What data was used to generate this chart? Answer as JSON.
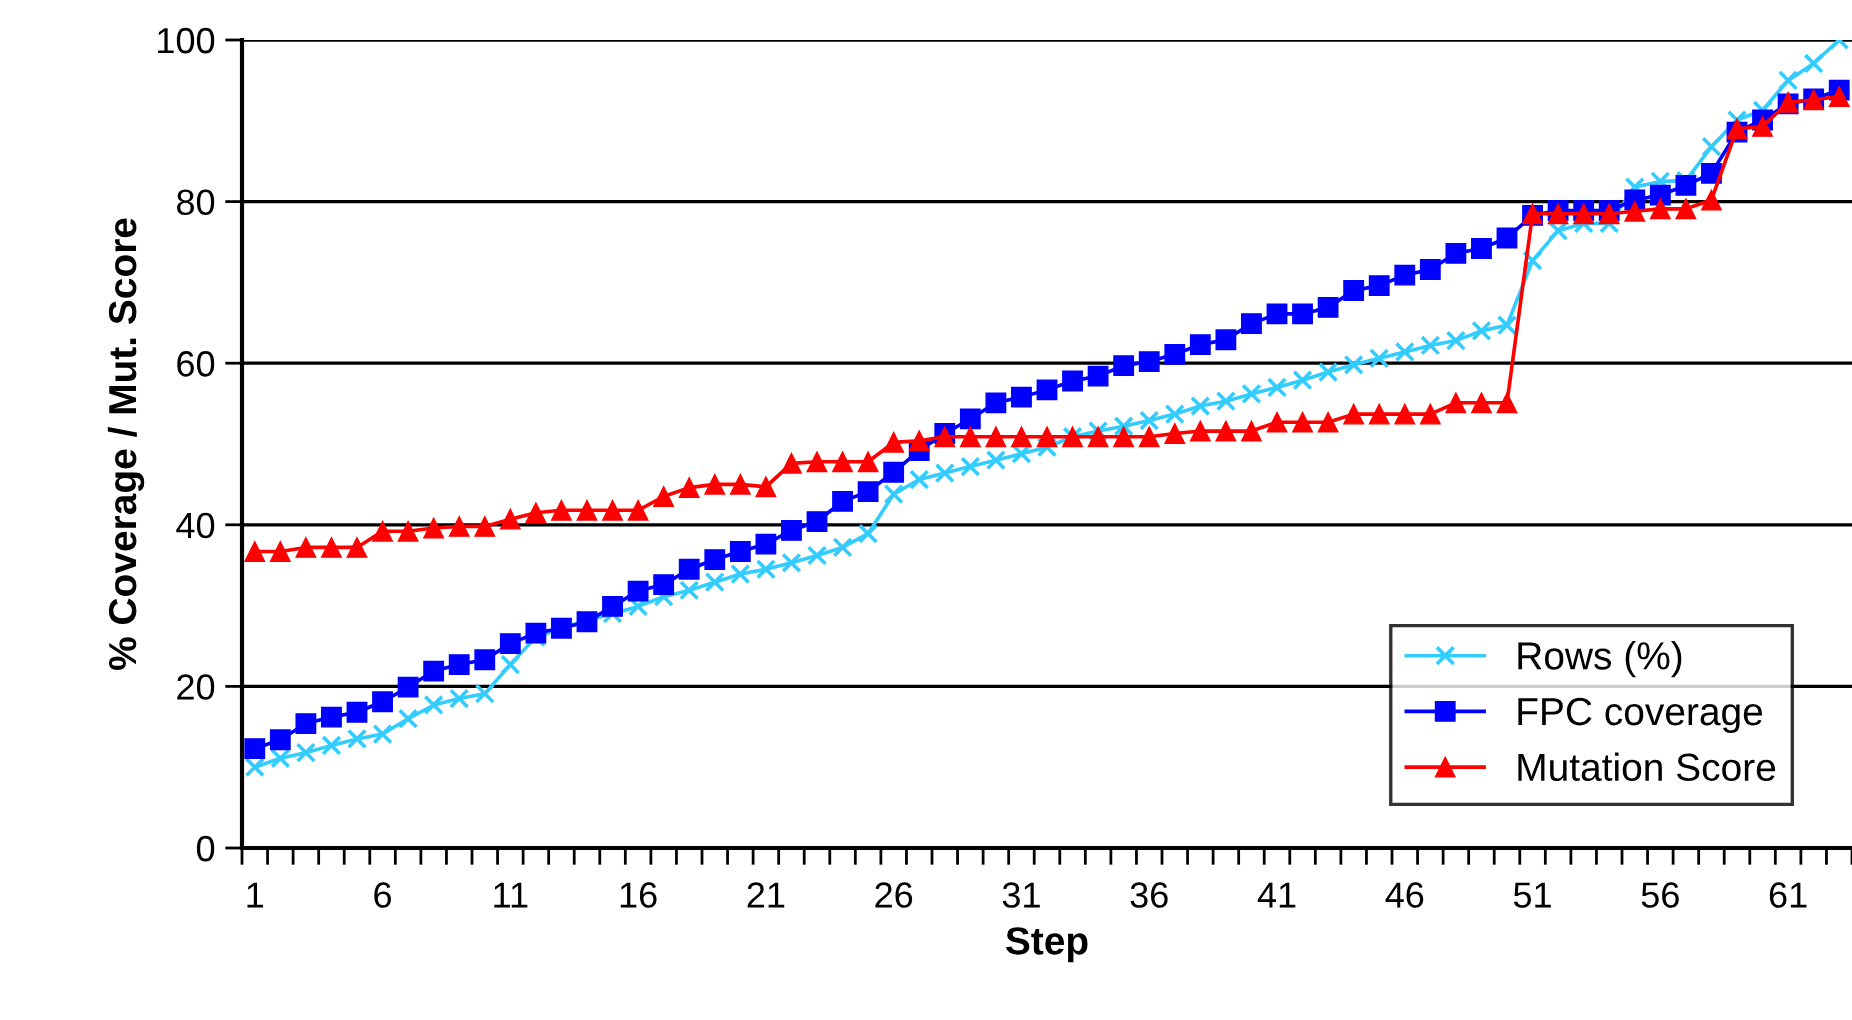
{
  "chart_data": {
    "type": "line",
    "xlabel": "Step",
    "ylabel": "% Coverage / Mut. Score",
    "categories": [
      "1",
      null,
      null,
      null,
      null,
      "6",
      null,
      null,
      null,
      null,
      "11",
      null,
      null,
      null,
      null,
      "16",
      null,
      null,
      null,
      null,
      "21",
      null,
      null,
      null,
      null,
      "26",
      null,
      null,
      null,
      null,
      "31",
      null,
      null,
      null,
      null,
      "36",
      null,
      null,
      null,
      null,
      "41",
      null,
      null,
      null,
      null,
      "46",
      null,
      null,
      null,
      null,
      "51",
      null,
      null,
      null,
      null,
      "56",
      null,
      null,
      null,
      null,
      "61",
      null,
      null
    ],
    "series": [
      {
        "name": "Rows (%)",
        "color": "#33ccff",
        "marker": "cross",
        "values": [
          10,
          11.1,
          11.8,
          12.7,
          13.5,
          14.1,
          16,
          17.7,
          18.5,
          19.1,
          22.7,
          26.1,
          27.2,
          28.2,
          29,
          29.9,
          31.1,
          31.9,
          32.9,
          33.9,
          34.5,
          35.3,
          36.2,
          37.2,
          38.9,
          43.8,
          45.6,
          46.4,
          47.2,
          48,
          48.8,
          49.6,
          50.9,
          51.6,
          52.2,
          52.9,
          53.7,
          54.7,
          55.3,
          56.2,
          57,
          57.9,
          58.9,
          59.8,
          60.6,
          61.4,
          62.2,
          62.8,
          64,
          64.7,
          72.7,
          76.4,
          77.3,
          77.3,
          81.8,
          82.5,
          82.6,
          86.8,
          90.1,
          91.3,
          95,
          97.1,
          100
        ]
      },
      {
        "name": "FPC coverage",
        "color": "#0000ff",
        "marker": "square",
        "values": [
          12.3,
          13.4,
          15.4,
          16.2,
          16.8,
          18.1,
          19.9,
          21.9,
          22.7,
          23.3,
          25.3,
          26.6,
          27.2,
          28,
          29.9,
          31.8,
          32.6,
          34.5,
          35.7,
          36.7,
          37.6,
          39.3,
          40.4,
          42.9,
          44.1,
          46.5,
          49.2,
          51.3,
          53.1,
          55.1,
          55.8,
          56.7,
          57.8,
          58.4,
          59.7,
          60.2,
          61.1,
          62.3,
          62.9,
          64.9,
          66.1,
          66.1,
          66.9,
          69,
          69.6,
          70.9,
          71.6,
          73.6,
          74.2,
          75.5,
          78.3,
          78.9,
          78.9,
          78.9,
          80.2,
          80.8,
          82,
          83.5,
          88.6,
          90.1,
          92.1,
          92.7,
          93.8
        ]
      },
      {
        "name": "Mutation Score",
        "color": "#ff0000",
        "marker": "triangle",
        "values": [
          36.7,
          36.7,
          37.2,
          37.2,
          37.2,
          39.2,
          39.2,
          39.6,
          39.8,
          39.8,
          40.7,
          41.5,
          41.8,
          41.8,
          41.8,
          41.8,
          43.5,
          44.6,
          45,
          45,
          44.7,
          47.6,
          47.8,
          47.8,
          47.8,
          50.2,
          50.4,
          50.9,
          50.9,
          50.9,
          50.9,
          50.9,
          50.9,
          50.9,
          50.9,
          50.9,
          51.3,
          51.6,
          51.6,
          51.6,
          52.7,
          52.7,
          52.7,
          53.7,
          53.7,
          53.7,
          53.7,
          55.1,
          55.1,
          55.1,
          78.5,
          78.5,
          78.5,
          78.5,
          78.8,
          79.1,
          79.1,
          80.2,
          89,
          89.3,
          92.3,
          92.6,
          93
        ]
      }
    ],
    "ylim": [
      0,
      100
    ],
    "yticks": [
      0,
      20,
      40,
      60,
      80,
      100
    ],
    "grid": "y",
    "legend": "bottom right",
    "line_style": "solid"
  }
}
